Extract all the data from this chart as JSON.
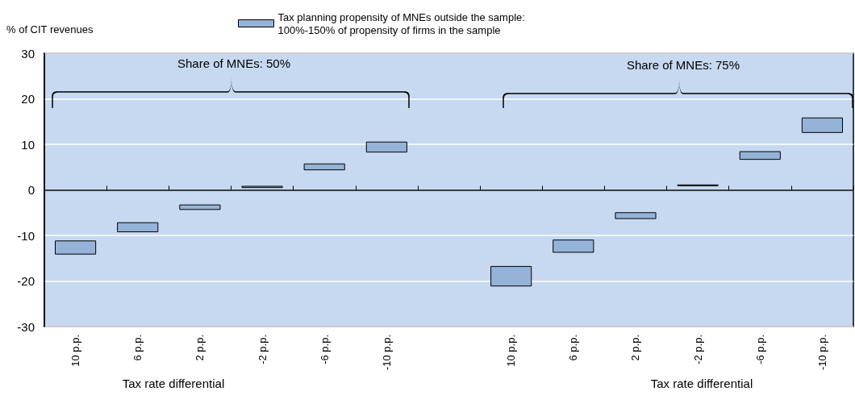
{
  "chart_data": {
    "type": "bar",
    "ylabel": "% of CIT revenues",
    "categories": [
      "10 p.p.",
      "6 p.p.",
      "2 p.p.",
      "-2 p.p.",
      "-6 p.p.",
      "-10 p.p.",
      null,
      "10 p.p.",
      "6 p.p.",
      "2 p.p.",
      "-2 p.p.",
      "-6 p.p.",
      "-10 p.p."
    ],
    "series": [
      {
        "name": "Tax planning propensity of MNEs outside the sample:\n100%-150% of propensity of firms in the sample",
        "color": "#95b3d7",
        "base": [
          -14.1,
          -9.2,
          -4.3,
          0.5,
          4.4,
          8.3,
          null,
          -21.1,
          -13.7,
          -6.3,
          0.9,
          6.7,
          12.6
        ],
        "values": [
          2.9,
          2.0,
          1.0,
          0.3,
          1.3,
          2.2,
          null,
          4.3,
          2.7,
          1.3,
          0.2,
          1.7,
          3.2
        ]
      }
    ],
    "ylim": [
      -30,
      30
    ],
    "yticks": [
      -30,
      -20,
      -10,
      0,
      10,
      20,
      30
    ],
    "grid": "y",
    "legend": "top",
    "annotations": [
      "Share of MNEs: 50%",
      "Share of MNEs: 75%",
      "Tax rate differential",
      "Tax rate differential"
    ]
  }
}
